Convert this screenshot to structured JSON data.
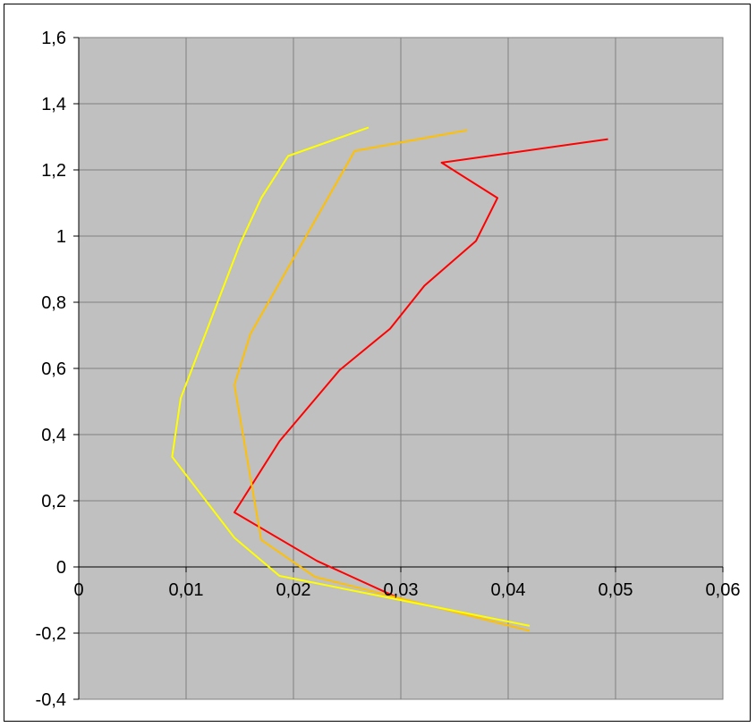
{
  "chart_data": {
    "type": "line",
    "title": "",
    "xlabel": "",
    "ylabel": "",
    "xlim": [
      0,
      0.06
    ],
    "ylim": [
      -0.4,
      1.6
    ],
    "x_ticks": [
      0,
      0.01,
      0.02,
      0.03,
      0.04,
      0.05,
      0.06
    ],
    "x_tick_labels": [
      "0",
      "0,01",
      "0,02",
      "0,03",
      "0,04",
      "0,05",
      "0,06"
    ],
    "y_ticks": [
      -0.4,
      -0.2,
      0,
      0.2,
      0.4,
      0.6,
      0.8,
      1,
      1.2,
      1.4,
      1.6
    ],
    "y_tick_labels": [
      "-0,4",
      "-0,2",
      "0",
      "0,2",
      "0,4",
      "0,6",
      "0,8",
      "1",
      "1,2",
      "1,4",
      "1,6"
    ],
    "grid": true,
    "legend": "none",
    "plot_background": "#c0c0c0",
    "series": [
      {
        "color": "#ff0000",
        "points": [
          [
            0.0295,
            -0.09
          ],
          [
            0.0222,
            0.018
          ],
          [
            0.0145,
            0.165
          ],
          [
            0.0187,
            0.38
          ],
          [
            0.0243,
            0.595
          ],
          [
            0.029,
            0.72
          ],
          [
            0.0322,
            0.85
          ],
          [
            0.037,
            0.985
          ],
          [
            0.039,
            1.115
          ],
          [
            0.0338,
            1.222
          ],
          [
            0.0493,
            1.293
          ]
        ]
      },
      {
        "color": "#ffc000",
        "points": [
          [
            0.042,
            -0.193
          ],
          [
            0.022,
            -0.03
          ],
          [
            0.017,
            0.082
          ],
          [
            0.0145,
            0.55
          ],
          [
            0.016,
            0.705
          ],
          [
            0.0257,
            1.257
          ],
          [
            0.0362,
            1.32
          ]
        ]
      },
      {
        "color": "#ffff00",
        "points": [
          [
            0.042,
            -0.178
          ],
          [
            0.0187,
            -0.027
          ],
          [
            0.0145,
            0.088
          ],
          [
            0.0087,
            0.333
          ],
          [
            0.0095,
            0.51
          ],
          [
            0.015,
            0.975
          ],
          [
            0.017,
            1.115
          ],
          [
            0.0195,
            1.242
          ],
          [
            0.027,
            1.328
          ]
        ]
      }
    ]
  }
}
